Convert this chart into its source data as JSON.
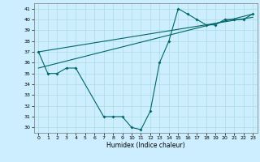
{
  "xlabel": "Humidex (Indice chaleur)",
  "background_color": "#cceeff",
  "line_color": "#006666",
  "grid_color": "#aadddd",
  "xlim": [
    -0.5,
    23.5
  ],
  "ylim": [
    29.5,
    41.5
  ],
  "yticks": [
    30,
    31,
    32,
    33,
    34,
    35,
    36,
    37,
    38,
    39,
    40,
    41
  ],
  "xticks": [
    0,
    1,
    2,
    3,
    4,
    5,
    6,
    7,
    8,
    9,
    10,
    11,
    12,
    13,
    14,
    15,
    16,
    17,
    18,
    19,
    20,
    21,
    22,
    23
  ],
  "main_curve_x": [
    0,
    1,
    2,
    3,
    4,
    7,
    8,
    9,
    10,
    11,
    12,
    13,
    14,
    15,
    16,
    17,
    18,
    19,
    20,
    21,
    22,
    23
  ],
  "main_curve_y": [
    37.0,
    35.0,
    35.0,
    35.5,
    35.5,
    31.0,
    31.0,
    31.0,
    30.0,
    29.8,
    31.5,
    36.0,
    38.0,
    41.0,
    40.5,
    40.0,
    39.5,
    39.5,
    40.0,
    40.0,
    40.0,
    40.5
  ],
  "trend1_x": [
    0,
    23
  ],
  "trend1_y": [
    37.0,
    40.2
  ],
  "trend2_x": [
    0,
    23
  ],
  "trend2_y": [
    35.5,
    40.5
  ]
}
